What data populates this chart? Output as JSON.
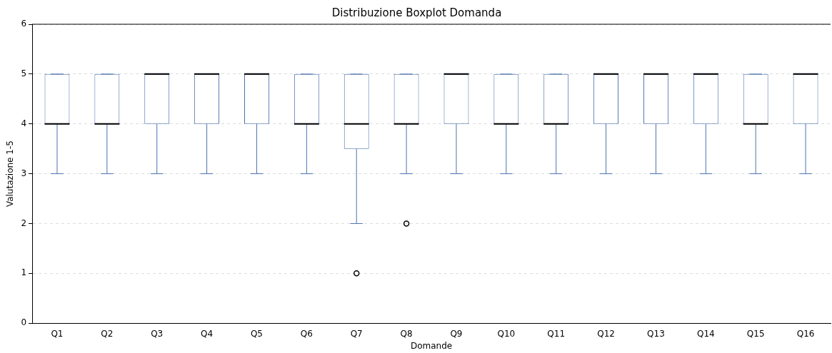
{
  "chart_data": {
    "type": "box",
    "title": "Distribuzione Boxplot Domanda",
    "xlabel": "Domande",
    "ylabel": "Valutazione 1-5",
    "categories": [
      "Q1",
      "Q2",
      "Q3",
      "Q4",
      "Q5",
      "Q6",
      "Q7",
      "Q8",
      "Q9",
      "Q10",
      "Q11",
      "Q12",
      "Q13",
      "Q14",
      "Q15",
      "Q16"
    ],
    "color": "#4c72b0",
    "boxes": [
      {
        "low": 3,
        "q1": 4,
        "median": 4,
        "q3": 5,
        "high": 5
      },
      {
        "low": 3,
        "q1": 4,
        "median": 4,
        "q3": 5,
        "high": 5
      },
      {
        "low": 3,
        "q1": 4,
        "median": 5,
        "q3": 5,
        "high": 5
      },
      {
        "low": 3,
        "q1": 4,
        "median": 5,
        "q3": 5,
        "high": 5
      },
      {
        "low": 3,
        "q1": 4,
        "median": 5,
        "q3": 5,
        "high": 5
      },
      {
        "low": 3,
        "q1": 4,
        "median": 4,
        "q3": 5,
        "high": 5
      },
      {
        "low": 2,
        "q1": 3.5,
        "median": 4,
        "q3": 5,
        "high": 5,
        "outliers": [
          1
        ]
      },
      {
        "low": 3,
        "q1": 4,
        "median": 4,
        "q3": 5,
        "high": 5,
        "outliers": [
          2
        ]
      },
      {
        "low": 3,
        "q1": 4,
        "median": 5,
        "q3": 5,
        "high": 5
      },
      {
        "low": 3,
        "q1": 4,
        "median": 4,
        "q3": 5,
        "high": 5
      },
      {
        "low": 3,
        "q1": 4,
        "median": 4,
        "q3": 5,
        "high": 5
      },
      {
        "low": 3,
        "q1": 4,
        "median": 5,
        "q3": 5,
        "high": 5
      },
      {
        "low": 3,
        "q1": 4,
        "median": 5,
        "q3": 5,
        "high": 5
      },
      {
        "low": 3,
        "q1": 4,
        "median": 5,
        "q3": 5,
        "high": 5
      },
      {
        "low": 3,
        "q1": 4,
        "median": 4,
        "q3": 5,
        "high": 5
      },
      {
        "low": 3,
        "q1": 4,
        "median": 5,
        "q3": 5,
        "high": 5
      }
    ],
    "ylim": [
      0,
      6
    ],
    "yticks": [
      0,
      1,
      2,
      3,
      4,
      5,
      6
    ],
    "grid": "y"
  }
}
